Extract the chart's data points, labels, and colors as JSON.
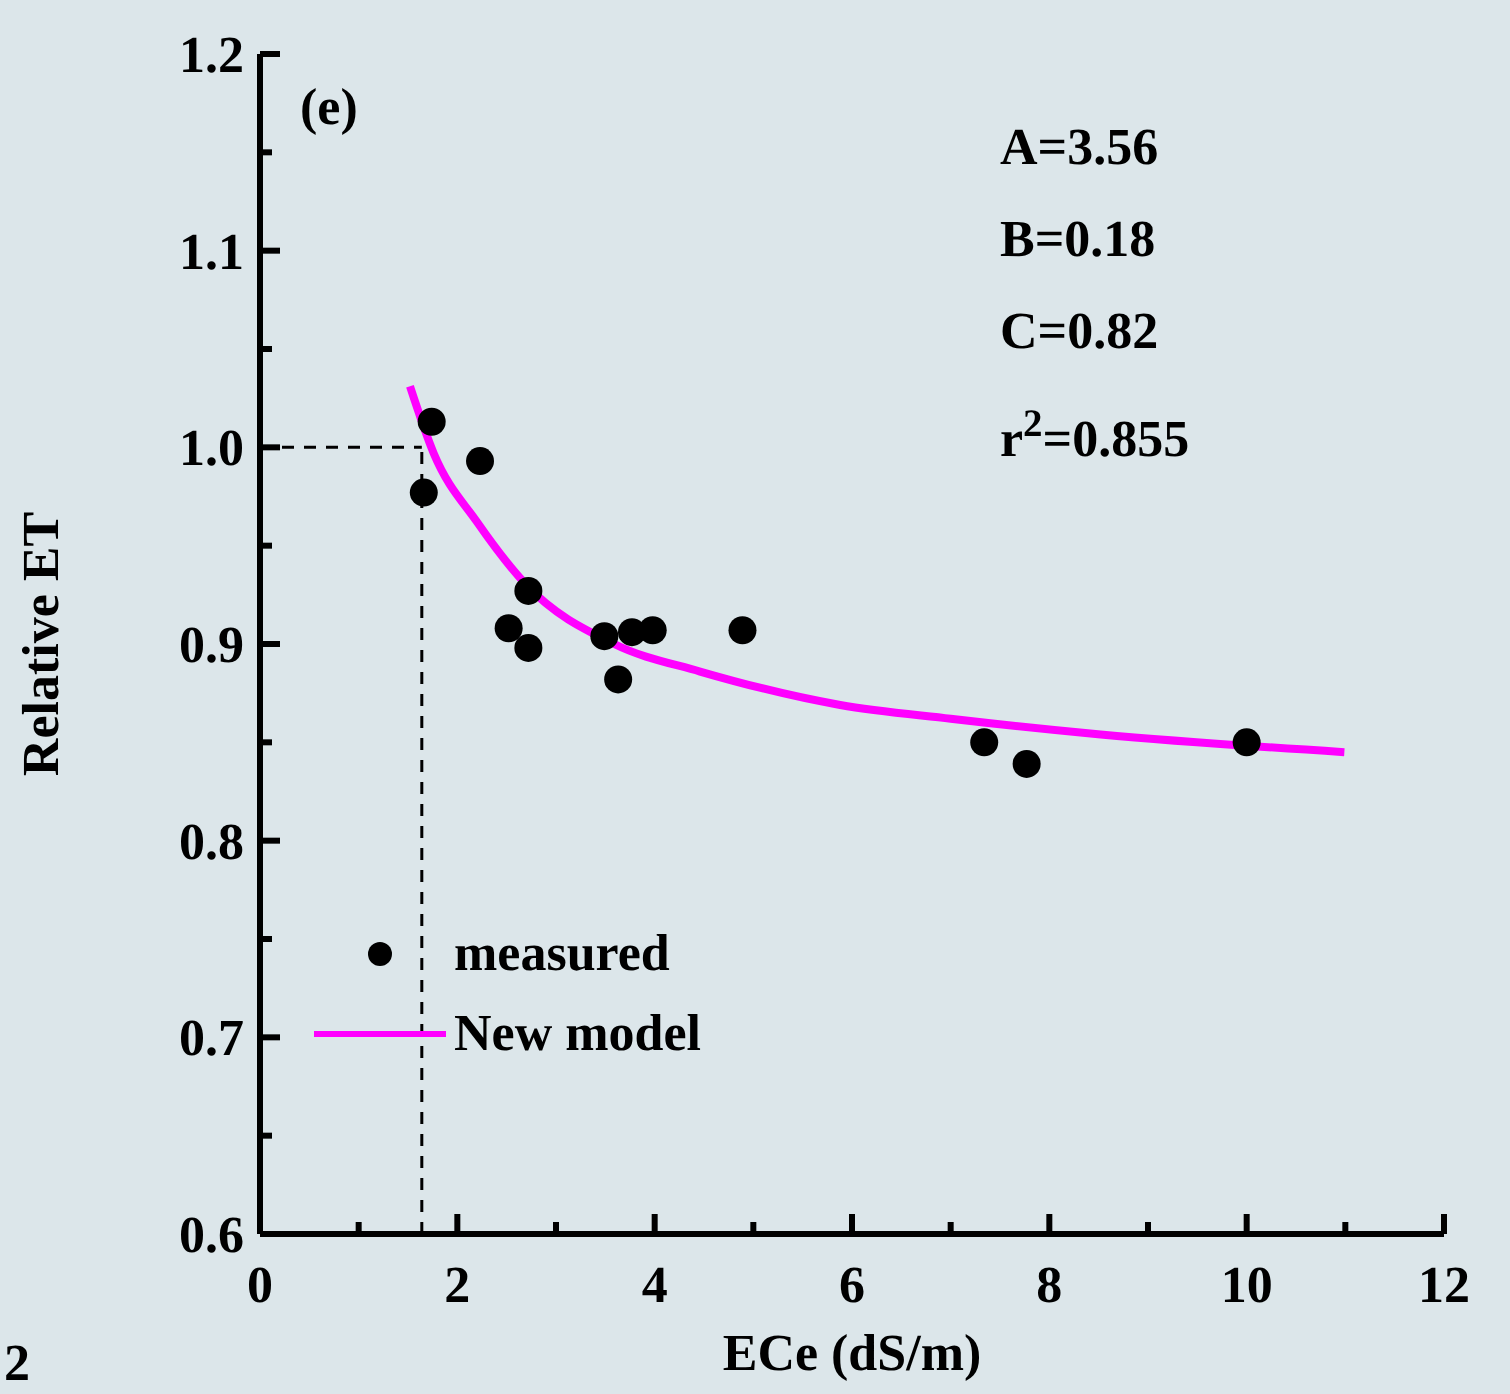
{
  "chart_data": {
    "type": "scatter",
    "xlabel": "ECe (dS/m)",
    "ylabel": "Relative ET",
    "annotations": [
      "(e)",
      "A=3.56",
      "B=0.18",
      "C=0.82",
      "r$^{2}$=0.855",
      "2"
    ],
    "xlim": [
      0,
      12
    ],
    "xticks": [
      0,
      {
        "value": 1,
        "label": null
      },
      2,
      {
        "value": 3,
        "label": null
      },
      4,
      {
        "value": 5,
        "label": null
      },
      6,
      {
        "value": 7,
        "label": null
      },
      8,
      {
        "value": 9,
        "label": null
      },
      10,
      {
        "value": 11,
        "label": null
      },
      12
    ],
    "ylim": [
      0.6,
      1.2
    ],
    "yticks": [
      0.6,
      {
        "value": 0.65,
        "label": null
      },
      0.7,
      {
        "value": 0.75,
        "label": null
      },
      0.8,
      {
        "value": 0.85,
        "label": null
      },
      0.9,
      {
        "value": 0.95,
        "label": null
      },
      {
        "value": 1,
        "label": "1.0"
      },
      {
        "value": 1.05,
        "label": null
      },
      1.1,
      {
        "value": 1.15,
        "label": null
      },
      1.2
    ],
    "ref_lines": [
      {
        "axis": "x",
        "value": 1.64,
        "line_style": "dashed",
        "color": "#000000"
      },
      {
        "axis": "y",
        "value": 1.0,
        "line_style": "dashed",
        "color": "#000000"
      }
    ],
    "legend": "bottom left",
    "grid": false,
    "marker": "circle",
    "series": [
      {
        "name": "measured",
        "color": "#000000",
        "x": [
          1.66,
          1.74,
          2.23,
          2.52,
          2.72,
          2.72,
          3.49,
          3.63,
          3.77,
          3.98,
          4.89,
          7.34,
          7.77,
          10.0
        ],
        "values": [
          0.977,
          1.013,
          0.993,
          0.908,
          0.927,
          0.898,
          0.904,
          0.882,
          0.906,
          0.907,
          0.907,
          0.85,
          0.839,
          0.85
        ]
      },
      {
        "name": "New model",
        "type": "line",
        "color": "#ff00ff",
        "marker": "none",
        "line_style": "solid",
        "x": [
          1.52,
          1.76,
          2.2,
          2.7,
          3.59,
          4.46,
          5.88,
          7.0,
          8.52,
          10.99
        ],
        "values": [
          1.031,
          0.997,
          0.962,
          0.93,
          0.9,
          0.886,
          0.869,
          0.862,
          0.854,
          0.845
        ]
      }
    ]
  }
}
